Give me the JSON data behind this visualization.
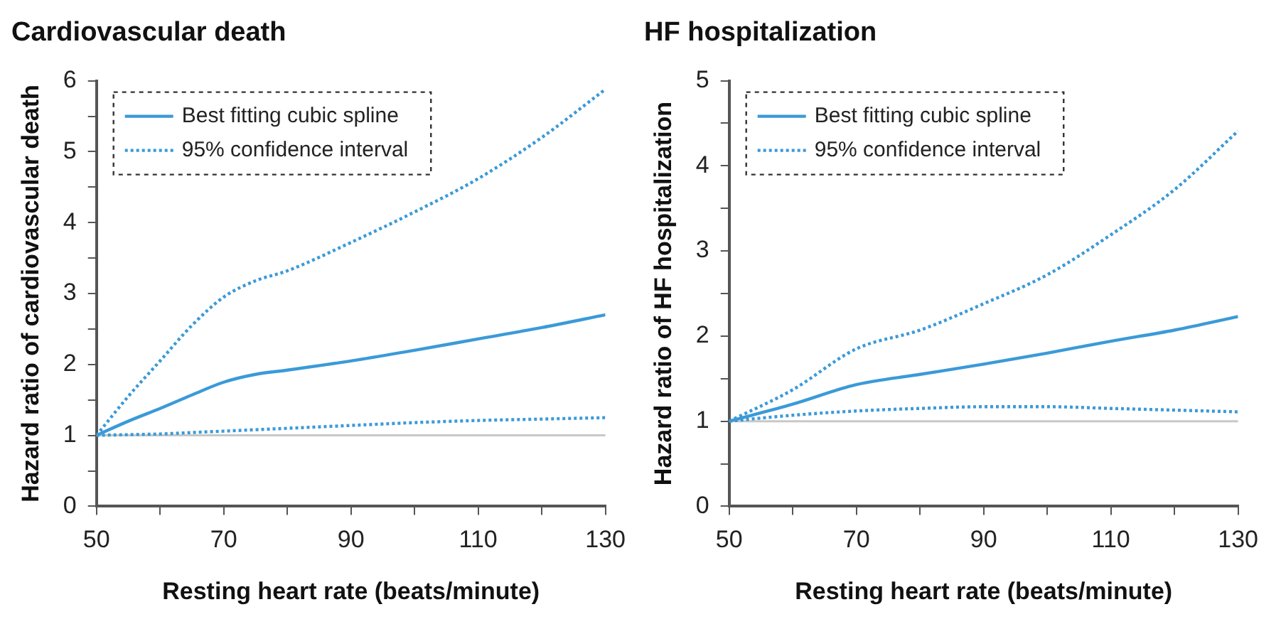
{
  "chart_data": [
    {
      "type": "line",
      "title": "Cardiovascular death",
      "xlabel": "Resting heart rate (beats/minute)",
      "ylabel": "Hazard ratio of cardiovascular death",
      "x": [
        50,
        55,
        60,
        65,
        70,
        75,
        80,
        90,
        100,
        110,
        120,
        130
      ],
      "xlim": [
        50,
        130
      ],
      "xticks": [
        50,
        {
          "value": 60,
          "label": null
        },
        70,
        {
          "value": 80,
          "label": null
        },
        90,
        {
          "value": 100,
          "label": null
        },
        110,
        {
          "value": 120,
          "label": null
        },
        130
      ],
      "ylim": [
        0,
        6
      ],
      "yticks": [
        0,
        {
          "value": 0.5,
          "label": null
        },
        1,
        {
          "value": 1.5,
          "label": null
        },
        2,
        {
          "value": 2.5,
          "label": null
        },
        3,
        {
          "value": 3.5,
          "label": null
        },
        4,
        {
          "value": 4.5,
          "label": null
        },
        5,
        {
          "value": 5.5,
          "label": null
        },
        6
      ],
      "grid": false,
      "legend": "top left",
      "marker": "none",
      "series": [
        {
          "name": "Best fitting cubic spline",
          "color": "#3b9ad8",
          "line_style": "solid",
          "values": [
            1,
            1.2,
            1.38,
            1.57,
            1.75,
            1.86,
            1.92,
            2.05,
            2.2,
            2.36,
            2.52,
            2.7
          ]
        },
        {
          "name": "95% confidence interval",
          "color": "#3b9ad8",
          "line_style": "dotted",
          "values": [
            1,
            1.55,
            2.05,
            2.55,
            2.95,
            3.18,
            3.32,
            3.72,
            4.15,
            4.62,
            5.2,
            5.88
          ]
        },
        {
          "color": "#3b9ad8",
          "line_style": "dotted",
          "values": [
            1,
            1.01,
            1.02,
            1.04,
            1.06,
            1.08,
            1.1,
            1.14,
            1.18,
            1.21,
            1.23,
            1.25
          ]
        }
      ],
      "ref_lines": [
        {
          "axis": "y",
          "value": 1,
          "color": "#c8c8c8"
        }
      ]
    },
    {
      "type": "line",
      "title": "HF hospitalization",
      "xlabel": "Resting heart rate (beats/minute)",
      "ylabel": "Hazard ratio of HF hospitalization",
      "x": [
        50,
        60,
        70,
        80,
        90,
        100,
        110,
        120,
        130
      ],
      "xlim": [
        50,
        130
      ],
      "xticks": [
        50,
        {
          "value": 60,
          "label": null
        },
        70,
        {
          "value": 80,
          "label": null
        },
        90,
        {
          "value": 100,
          "label": null
        },
        110,
        {
          "value": 120,
          "label": null
        },
        130
      ],
      "ylim": [
        0,
        5
      ],
      "yticks": [
        0,
        {
          "value": 0.5,
          "label": null
        },
        1,
        {
          "value": 1.5,
          "label": null
        },
        2,
        {
          "value": 2.5,
          "label": null
        },
        3,
        {
          "value": 3.5,
          "label": null
        },
        4,
        {
          "value": 4.5,
          "label": null
        },
        5
      ],
      "grid": false,
      "legend": "top left",
      "marker": "none",
      "series": [
        {
          "name": "Best fitting cubic spline",
          "color": "#3b9ad8",
          "line_style": "solid",
          "values": [
            1,
            1.2,
            1.43,
            1.55,
            1.67,
            1.8,
            1.94,
            2.07,
            2.23
          ]
        },
        {
          "name": "95% confidence interval",
          "color": "#3b9ad8",
          "line_style": "dotted",
          "values": [
            1,
            1.37,
            1.85,
            2.07,
            2.38,
            2.72,
            3.19,
            3.72,
            4.41
          ]
        },
        {
          "color": "#3b9ad8",
          "line_style": "dotted",
          "values": [
            1,
            1.07,
            1.12,
            1.15,
            1.17,
            1.17,
            1.15,
            1.13,
            1.11
          ]
        }
      ],
      "ref_lines": [
        {
          "axis": "y",
          "value": 1,
          "color": "#c8c8c8"
        }
      ]
    }
  ]
}
